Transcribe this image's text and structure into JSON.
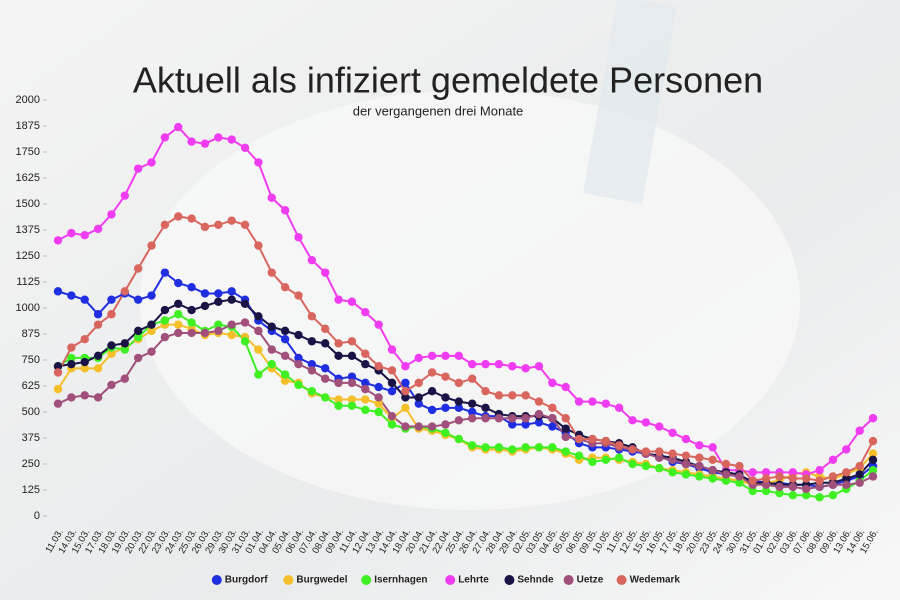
{
  "chart_data": {
    "type": "line",
    "title": "Aktuell als infiziert gemeldete Personen",
    "subtitle": "der vergangenen drei Monate",
    "categories": [
      "11.03.",
      "14.03.",
      "15.03.",
      "17.03.",
      "18.03.",
      "19.03.",
      "20.03.",
      "22.03.",
      "23.03.",
      "24.03.",
      "25.03.",
      "26.03.",
      "29.03.",
      "30.03.",
      "31.03.",
      "01.04.",
      "04.04.",
      "05.04.",
      "06.04.",
      "07.04.",
      "08.04.",
      "09.04.",
      "11.04.",
      "12.04.",
      "13.04.",
      "14.04.",
      "18.04.",
      "20.04.",
      "21.04.",
      "22.04.",
      "25.04.",
      "26.04.",
      "27.04.",
      "28.04.",
      "29.04.",
      "02.05.",
      "03.05.",
      "04.05.",
      "05.05.",
      "06.05.",
      "09.05.",
      "10.05.",
      "11.05.",
      "12.05.",
      "15.05.",
      "16.05.",
      "17.05.",
      "18.05.",
      "20.05.",
      "23.05.",
      "24.05.",
      "30.05.",
      "31.05.",
      "01.06.",
      "02.06.",
      "03.06.",
      "07.06.",
      "08.06.",
      "09.06.",
      "13.06.",
      "14.06.",
      "15.06."
    ],
    "series": [
      {
        "name": "Burgdorf",
        "color": "#1f2ee0",
        "values": [
          1080,
          1060,
          1040,
          970,
          1040,
          1070,
          1040,
          1060,
          1170,
          1120,
          1100,
          1070,
          1070,
          1080,
          1040,
          940,
          890,
          850,
          760,
          730,
          710,
          660,
          670,
          640,
          620,
          600,
          640,
          540,
          510,
          520,
          520,
          500,
          480,
          480,
          440,
          440,
          450,
          430,
          400,
          350,
          330,
          330,
          320,
          310,
          300,
          290,
          260,
          250,
          230,
          210,
          200,
          190,
          170,
          160,
          160,
          150,
          150,
          140,
          150,
          170,
          190,
          240
        ]
      },
      {
        "name": "Burgwedel",
        "color": "#f5bf2a",
        "values": [
          610,
          710,
          710,
          710,
          780,
          810,
          850,
          890,
          920,
          920,
          900,
          870,
          880,
          870,
          860,
          800,
          710,
          650,
          640,
          590,
          570,
          560,
          560,
          560,
          540,
          470,
          520,
          420,
          410,
          390,
          370,
          330,
          320,
          320,
          310,
          320,
          330,
          320,
          300,
          270,
          280,
          280,
          270,
          260,
          250,
          230,
          220,
          210,
          200,
          190,
          180,
          170,
          150,
          160,
          170,
          200,
          210,
          190,
          180,
          200,
          230,
          300
        ]
      },
      {
        "name": "Isernhagen",
        "color": "#3ef022",
        "values": [
          720,
          760,
          760,
          760,
          810,
          800,
          860,
          920,
          940,
          970,
          930,
          890,
          920,
          910,
          840,
          680,
          730,
          680,
          630,
          600,
          570,
          530,
          530,
          510,
          500,
          440,
          420,
          430,
          420,
          400,
          370,
          340,
          330,
          330,
          320,
          330,
          330,
          330,
          310,
          290,
          260,
          270,
          280,
          250,
          240,
          230,
          210,
          200,
          190,
          180,
          170,
          160,
          120,
          120,
          110,
          100,
          100,
          90,
          100,
          130,
          170,
          220
        ]
      },
      {
        "name": "Lehrte",
        "color": "#f03cf0",
        "values": [
          1325,
          1360,
          1350,
          1380,
          1450,
          1540,
          1670,
          1700,
          1820,
          1870,
          1800,
          1790,
          1820,
          1810,
          1770,
          1700,
          1530,
          1470,
          1340,
          1230,
          1170,
          1040,
          1030,
          980,
          920,
          800,
          720,
          760,
          770,
          770,
          770,
          730,
          730,
          730,
          720,
          710,
          720,
          640,
          620,
          550,
          550,
          540,
          520,
          460,
          450,
          430,
          400,
          370,
          340,
          330,
          220,
          220,
          210,
          210,
          210,
          210,
          200,
          220,
          270,
          320,
          410,
          470
        ]
      },
      {
        "name": "Sehnde",
        "color": "#1a1446",
        "values": [
          720,
          730,
          740,
          770,
          820,
          830,
          890,
          920,
          990,
          1020,
          990,
          1010,
          1030,
          1040,
          1020,
          960,
          910,
          890,
          870,
          840,
          830,
          770,
          770,
          730,
          700,
          640,
          570,
          570,
          600,
          570,
          550,
          540,
          520,
          490,
          480,
          480,
          480,
          470,
          420,
          390,
          370,
          360,
          350,
          330,
          300,
          290,
          280,
          260,
          240,
          220,
          210,
          200,
          160,
          160,
          150,
          150,
          150,
          160,
          160,
          180,
          200,
          270
        ]
      },
      {
        "name": "Uetze",
        "color": "#a0507a",
        "values": [
          540,
          570,
          580,
          570,
          630,
          660,
          760,
          790,
          860,
          880,
          880,
          880,
          890,
          920,
          930,
          890,
          800,
          770,
          730,
          700,
          660,
          640,
          640,
          610,
          570,
          480,
          430,
          430,
          430,
          440,
          460,
          470,
          470,
          470,
          470,
          470,
          490,
          470,
          380,
          370,
          350,
          350,
          330,
          320,
          300,
          280,
          270,
          250,
          240,
          220,
          200,
          190,
          150,
          150,
          140,
          140,
          130,
          140,
          150,
          150,
          160,
          190
        ]
      },
      {
        "name": "Wedemark",
        "color": "#d9665e",
        "values": [
          690,
          810,
          850,
          920,
          970,
          1080,
          1190,
          1300,
          1400,
          1440,
          1430,
          1390,
          1400,
          1420,
          1400,
          1300,
          1170,
          1100,
          1060,
          960,
          900,
          830,
          840,
          780,
          720,
          700,
          600,
          640,
          690,
          670,
          640,
          660,
          600,
          580,
          580,
          580,
          550,
          520,
          470,
          370,
          370,
          360,
          340,
          320,
          310,
          310,
          300,
          290,
          280,
          270,
          250,
          240,
          170,
          180,
          190,
          180,
          180,
          170,
          190,
          210,
          240,
          360
        ]
      }
    ],
    "ylim": [
      0,
      2000
    ],
    "yticks": [
      0,
      125,
      250,
      375,
      500,
      625,
      750,
      875,
      1000,
      1125,
      1250,
      1375,
      1500,
      1625,
      1750,
      1875,
      2000
    ],
    "legend": "bottom"
  }
}
